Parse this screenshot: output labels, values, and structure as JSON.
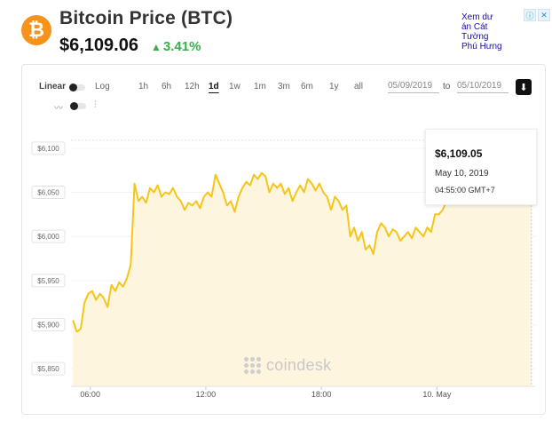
{
  "header": {
    "logo_letter": "₿",
    "title": "Bitcoin Price (BTC)",
    "price": "$6,109.06",
    "change": "3.41%",
    "change_arrow": "▲",
    "change_color": "#35b04a"
  },
  "ad": {
    "text": "Xem dư án Cát Tường Phú Hưng",
    "icons": [
      "info-icon",
      "close-icon"
    ]
  },
  "controls": {
    "scale_linear": "Linear",
    "scale_log": "Log",
    "ranges": [
      "1h",
      "6h",
      "12h",
      "1d",
      "1w",
      "1m",
      "3m",
      "6m",
      "1y",
      "all"
    ],
    "active_range": "1d",
    "from_date": "05/09/2019",
    "to_label": "to",
    "to_date": "05/10/2019",
    "download_icon": "download-icon"
  },
  "tooltip": {
    "price": "$6,109.05",
    "date": "May 10, 2019",
    "time": "04:55:00 GMT+7"
  },
  "watermark": "coindesk",
  "chart_data": {
    "type": "area",
    "title": "",
    "xlabel": "",
    "ylabel": "",
    "ylim": [
      5830,
      6120
    ],
    "y_ticks": [
      5850,
      5900,
      5950,
      6000,
      6050,
      6100
    ],
    "y_tick_labels": [
      "$5,850",
      "$5,900",
      "$5,950",
      "$6,000",
      "$6,050",
      "$6,100"
    ],
    "x_ticks": [
      {
        "t": 6,
        "label": "06:00"
      },
      {
        "t": 12,
        "label": "12:00"
      },
      {
        "t": 18,
        "label": "18:00"
      },
      {
        "t": 24,
        "label": "10. May"
      }
    ],
    "x_range_hours": [
      5,
      29.1
    ],
    "line_color": "#f5c518",
    "fill_color": "#fdf5dd",
    "series": [
      {
        "points": [
          [
            5.1,
            5905
          ],
          [
            5.3,
            5892
          ],
          [
            5.5,
            5895
          ],
          [
            5.7,
            5925
          ],
          [
            5.9,
            5935
          ],
          [
            6.1,
            5938
          ],
          [
            6.3,
            5928
          ],
          [
            6.5,
            5935
          ],
          [
            6.7,
            5930
          ],
          [
            6.9,
            5920
          ],
          [
            7.1,
            5945
          ],
          [
            7.3,
            5938
          ],
          [
            7.5,
            5948
          ],
          [
            7.7,
            5943
          ],
          [
            7.9,
            5952
          ],
          [
            8.1,
            5968
          ],
          [
            8.3,
            6060
          ],
          [
            8.5,
            6040
          ],
          [
            8.7,
            6045
          ],
          [
            8.9,
            6038
          ],
          [
            9.1,
            6055
          ],
          [
            9.3,
            6050
          ],
          [
            9.5,
            6058
          ],
          [
            9.7,
            6045
          ],
          [
            9.9,
            6050
          ],
          [
            10.1,
            6048
          ],
          [
            10.3,
            6055
          ],
          [
            10.5,
            6045
          ],
          [
            10.7,
            6040
          ],
          [
            10.9,
            6030
          ],
          [
            11.1,
            6038
          ],
          [
            11.3,
            6035
          ],
          [
            11.5,
            6040
          ],
          [
            11.7,
            6032
          ],
          [
            11.9,
            6045
          ],
          [
            12.1,
            6050
          ],
          [
            12.3,
            6045
          ],
          [
            12.5,
            6070
          ],
          [
            12.7,
            6060
          ],
          [
            12.9,
            6050
          ],
          [
            13.1,
            6035
          ],
          [
            13.3,
            6040
          ],
          [
            13.5,
            6028
          ],
          [
            13.7,
            6045
          ],
          [
            13.9,
            6055
          ],
          [
            14.1,
            6062
          ],
          [
            14.3,
            6058
          ],
          [
            14.5,
            6070
          ],
          [
            14.7,
            6065
          ],
          [
            14.9,
            6072
          ],
          [
            15.1,
            6068
          ],
          [
            15.3,
            6050
          ],
          [
            15.5,
            6060
          ],
          [
            15.7,
            6055
          ],
          [
            15.9,
            6060
          ],
          [
            16.1,
            6048
          ],
          [
            16.3,
            6055
          ],
          [
            16.5,
            6040
          ],
          [
            16.7,
            6050
          ],
          [
            16.9,
            6058
          ],
          [
            17.1,
            6050
          ],
          [
            17.3,
            6065
          ],
          [
            17.5,
            6060
          ],
          [
            17.7,
            6052
          ],
          [
            17.9,
            6060
          ],
          [
            18.1,
            6050
          ],
          [
            18.3,
            6045
          ],
          [
            18.5,
            6030
          ],
          [
            18.7,
            6045
          ],
          [
            18.9,
            6040
          ],
          [
            19.1,
            6030
          ],
          [
            19.3,
            6035
          ],
          [
            19.5,
            6000
          ],
          [
            19.7,
            6010
          ],
          [
            19.9,
            5995
          ],
          [
            20.1,
            6005
          ],
          [
            20.3,
            5985
          ],
          [
            20.5,
            5990
          ],
          [
            20.7,
            5980
          ],
          [
            20.9,
            6005
          ],
          [
            21.1,
            6015
          ],
          [
            21.3,
            6010
          ],
          [
            21.5,
            6000
          ],
          [
            21.7,
            6008
          ],
          [
            21.9,
            6005
          ],
          [
            22.1,
            5995
          ],
          [
            22.3,
            6000
          ],
          [
            22.5,
            6005
          ],
          [
            22.7,
            5998
          ],
          [
            22.9,
            6010
          ],
          [
            23.1,
            6005
          ],
          [
            23.3,
            6000
          ],
          [
            23.5,
            6010
          ],
          [
            23.7,
            6005
          ],
          [
            23.9,
            6025
          ],
          [
            24.1,
            6025
          ],
          [
            24.3,
            6030
          ],
          [
            24.5,
            6040
          ],
          [
            24.7,
            6045
          ],
          [
            24.9,
            6048
          ],
          [
            25.1,
            6060
          ],
          [
            25.3,
            6050
          ],
          [
            25.5,
            6058
          ],
          [
            25.7,
            6055
          ],
          [
            25.9,
            6060
          ],
          [
            26.1,
            6065
          ],
          [
            26.3,
            6055
          ],
          [
            26.5,
            6060
          ],
          [
            26.7,
            6070
          ],
          [
            26.9,
            6075
          ],
          [
            27.1,
            6085
          ],
          [
            27.3,
            6080
          ],
          [
            27.5,
            6090
          ],
          [
            27.7,
            6095
          ],
          [
            27.9,
            6100
          ],
          [
            28.1,
            6105
          ],
          [
            28.3,
            6098
          ],
          [
            28.5,
            6100
          ],
          [
            28.7,
            6105
          ],
          [
            28.9,
            6109
          ]
        ]
      }
    ]
  }
}
